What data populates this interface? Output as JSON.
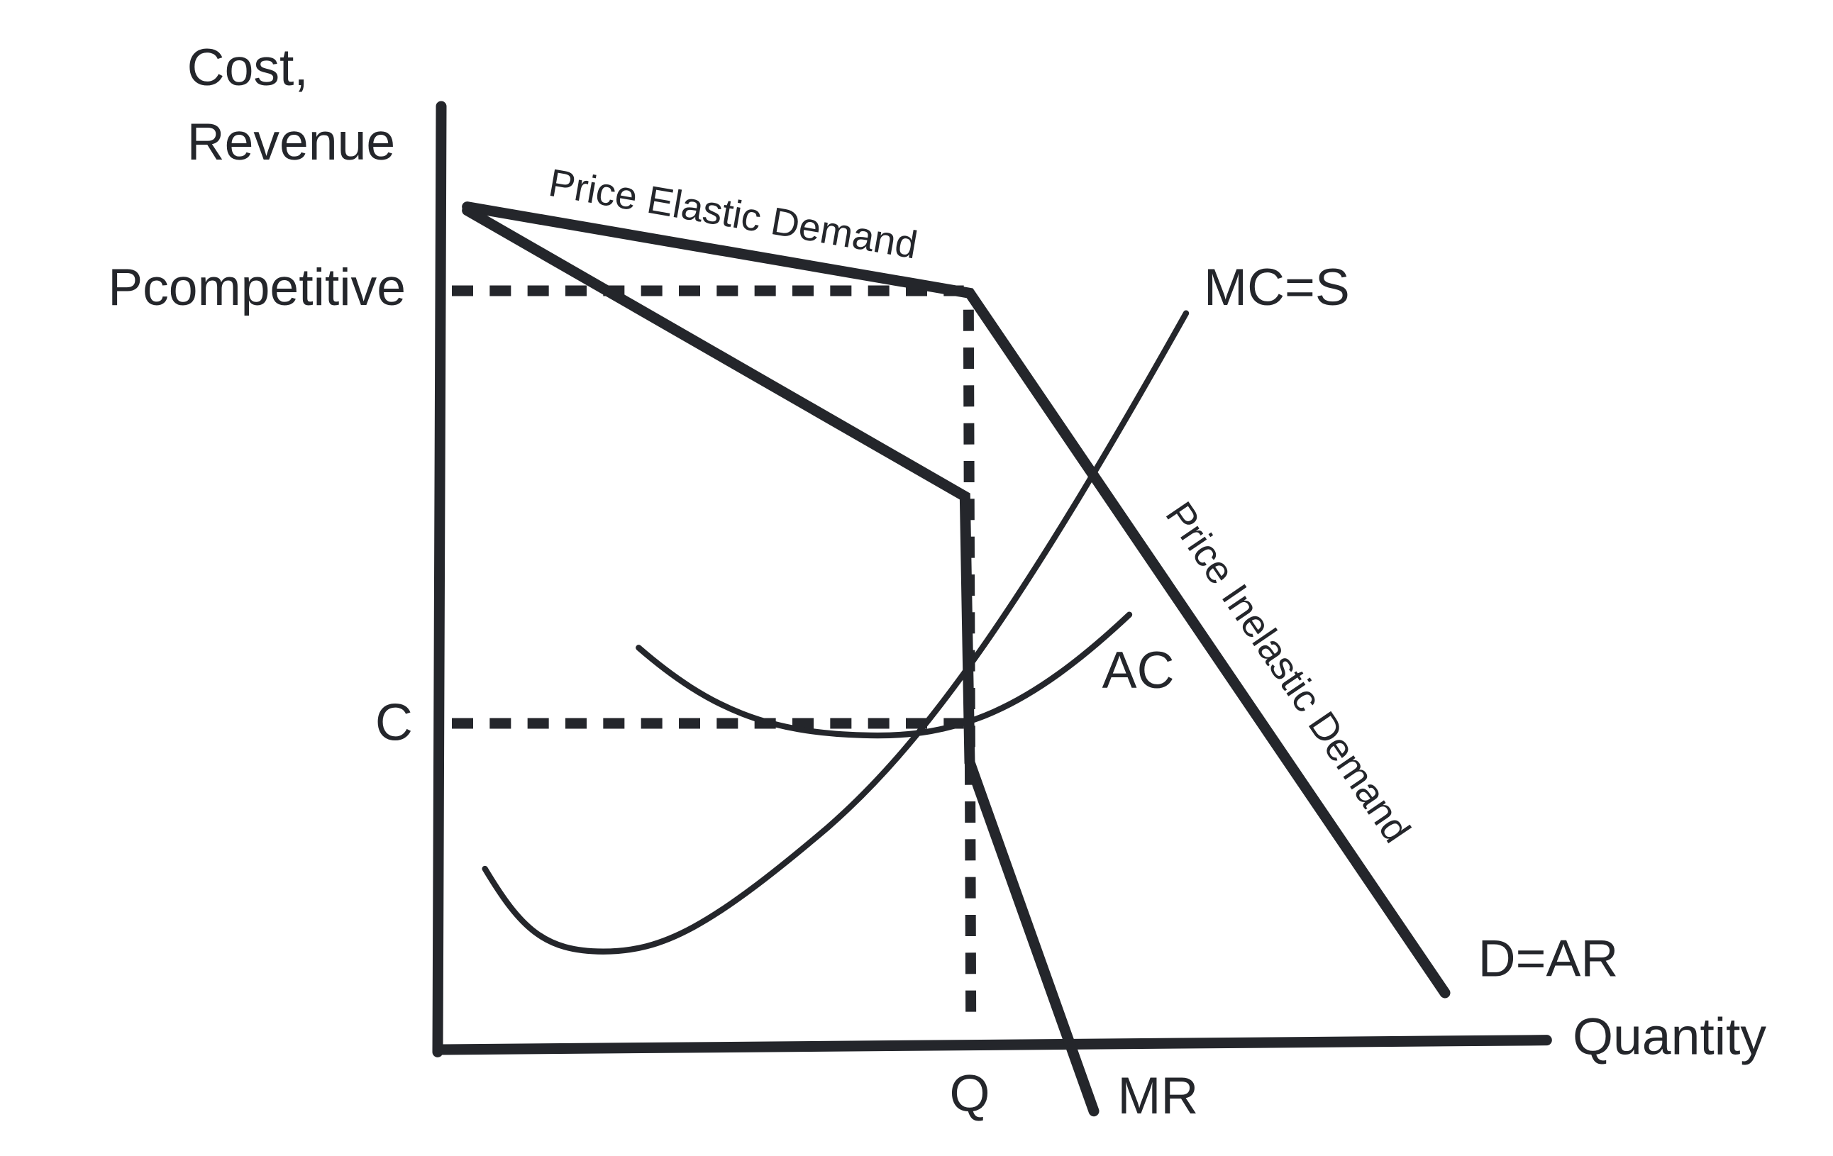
{
  "axes": {
    "y_label": [
      "Cost,",
      "Revenue"
    ],
    "x_label": "Quantity"
  },
  "levels": {
    "price": "Pcompetitive",
    "cost": "C",
    "quantity": "Q"
  },
  "curves": {
    "mr": "MR",
    "ac": "AC",
    "mc": "MC=S",
    "demand": "D=AR"
  },
  "segments": {
    "elastic": "Price Elastic Demand",
    "inelastic": "Price Inelastic Demand"
  }
}
